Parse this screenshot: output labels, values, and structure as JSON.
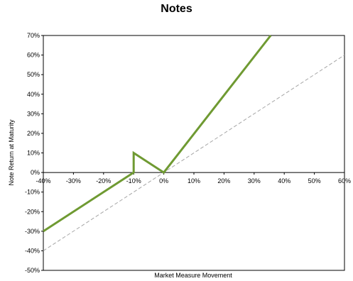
{
  "chart_data": {
    "type": "line",
    "title": "Notes",
    "xlabel": "Market Measure Movement",
    "ylabel": "Note Return at Maturity",
    "xlim": [
      -40,
      60
    ],
    "ylim": [
      -50,
      70
    ],
    "x_ticks": [
      -40,
      -30,
      -20,
      -10,
      0,
      10,
      20,
      30,
      40,
      50,
      60
    ],
    "x_tick_labels": [
      "-40%",
      "-30%",
      "-20%",
      "-10%",
      "0%",
      "10%",
      "20%",
      "30%",
      "40%",
      "50%",
      "60%"
    ],
    "y_ticks": [
      -50,
      -40,
      -30,
      -20,
      -10,
      0,
      10,
      20,
      30,
      40,
      50,
      60,
      70
    ],
    "y_tick_labels": [
      "-50%",
      "-40%",
      "-30%",
      "-20%",
      "-10%",
      "0%",
      "10%",
      "20%",
      "30%",
      "40%",
      "50%",
      "60%",
      "70%"
    ],
    "grid": false,
    "legend": "none",
    "series": [
      {
        "x": [
          -40,
          -10,
          -10,
          0,
          35.5
        ],
        "y": [
          -30,
          0,
          10,
          0,
          70
        ],
        "color": "#6f9a32",
        "style": "solid"
      },
      {
        "x": [
          -40,
          60
        ],
        "y": [
          -40,
          60
        ],
        "color": "#a6a6a6",
        "style": "dashed"
      }
    ]
  }
}
